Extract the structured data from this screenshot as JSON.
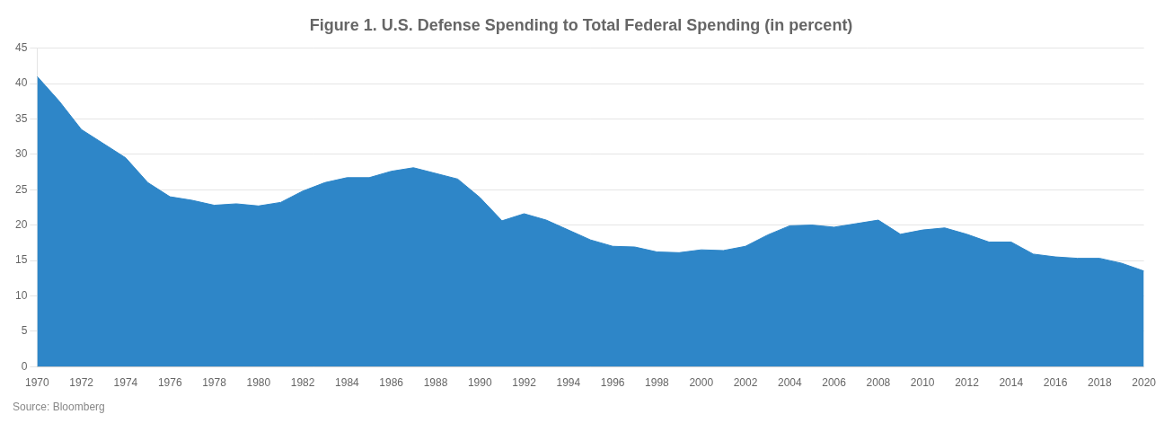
{
  "chart_data": {
    "type": "area",
    "title": "Figure 1. U.S. Defense Spending to Total Federal Spending (in percent)",
    "annotations": [
      "Source: Bloomberg"
    ],
    "x": [
      1970,
      1971,
      1972,
      1973,
      1974,
      1975,
      1976,
      1977,
      1978,
      1979,
      1980,
      1981,
      1982,
      1983,
      1984,
      1985,
      1986,
      1987,
      1988,
      1989,
      1990,
      1991,
      1992,
      1993,
      1994,
      1995,
      1996,
      1997,
      1998,
      1999,
      2000,
      2001,
      2002,
      2003,
      2004,
      2005,
      2006,
      2007,
      2008,
      2009,
      2010,
      2011,
      2012,
      2013,
      2014,
      2015,
      2016,
      2017,
      2018,
      2019,
      2020
    ],
    "values": [
      41.0,
      37.5,
      33.5,
      31.5,
      29.5,
      26.0,
      24.0,
      23.5,
      22.8,
      23.0,
      22.7,
      23.2,
      24.8,
      26.0,
      26.7,
      26.7,
      27.6,
      28.1,
      27.3,
      26.5,
      23.9,
      20.6,
      21.6,
      20.7,
      19.3,
      17.9,
      17.0,
      16.9,
      16.2,
      16.1,
      16.5,
      16.4,
      17.0,
      18.6,
      19.9,
      20.0,
      19.7,
      20.2,
      20.7,
      18.7,
      19.3,
      19.6,
      18.7,
      17.6,
      17.6,
      15.9,
      15.5,
      15.3,
      15.3,
      14.6,
      13.5
    ],
    "color": "#2e86c8",
    "xlim": [
      1970,
      2020
    ],
    "xticks": [
      1970,
      1972,
      1974,
      1976,
      1978,
      1980,
      1982,
      1984,
      1986,
      1988,
      1990,
      1992,
      1994,
      1996,
      1998,
      2000,
      2002,
      2004,
      2006,
      2008,
      2010,
      2012,
      2014,
      2016,
      2018,
      2020
    ],
    "ylim": [
      0,
      45
    ],
    "yticks": [
      0,
      5,
      10,
      15,
      20,
      25,
      30,
      35,
      40,
      45
    ],
    "grid": "y",
    "legend": false
  }
}
